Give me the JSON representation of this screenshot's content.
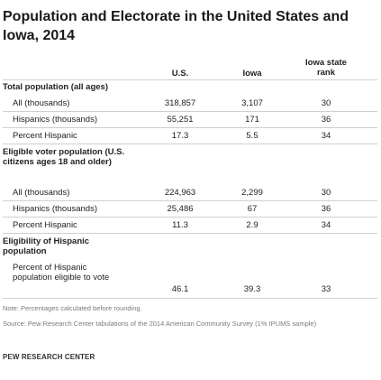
{
  "title": "Population and Electorate in the United States and Iowa, 2014",
  "columns": {
    "us": "U.S.",
    "iowa": "Iowa",
    "rank": "Iowa state rank"
  },
  "sections": [
    {
      "heading": "Total population (all ages)",
      "rows": [
        {
          "label": "All (thousands)",
          "us": "318,857",
          "iowa": "3,107",
          "rank": "30"
        },
        {
          "label": "Hispanics (thousands)",
          "us": "55,251",
          "iowa": "171",
          "rank": "36"
        },
        {
          "label": "Percent Hispanic",
          "us": "17.3",
          "iowa": "5.5",
          "rank": "34"
        }
      ]
    },
    {
      "heading": "Eligible voter population (U.S. citizens ages 18 and older)",
      "rows": [
        {
          "label": "All (thousands)",
          "us": "224,963",
          "iowa": "2,299",
          "rank": "30"
        },
        {
          "label": "Hispanics (thousands)",
          "us": "25,486",
          "iowa": "67",
          "rank": "36"
        },
        {
          "label": "Percent Hispanic",
          "us": "11.3",
          "iowa": "2.9",
          "rank": "34"
        }
      ]
    },
    {
      "heading": "Eligibility of Hispanic population",
      "rows": [
        {
          "label": "Percent of Hispanic population eligible to vote",
          "us": "46.1",
          "iowa": "39.3",
          "rank": "33"
        }
      ]
    }
  ],
  "note": "Note: Percentages calculated before rounding.",
  "source": "Source: Pew Research Center tabulations of the 2014 American Community Survey (1% IPUMS sample)",
  "brand": "PEW RESEARCH CENTER"
}
